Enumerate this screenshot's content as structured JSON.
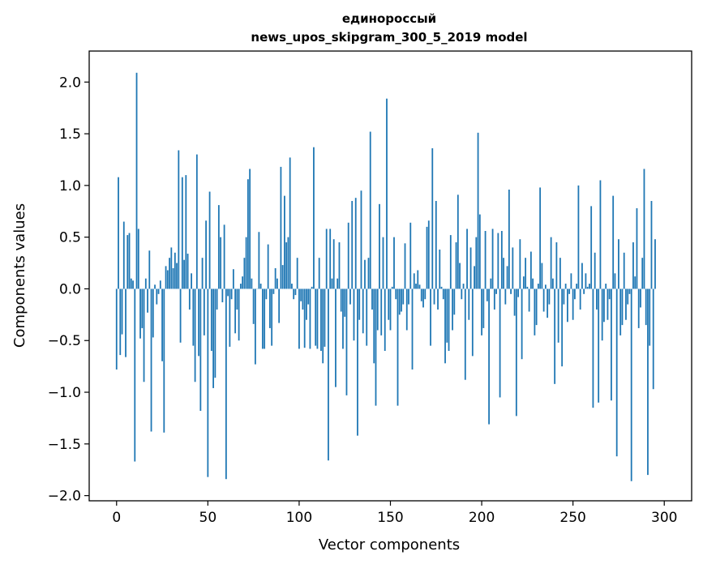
{
  "chart_data": {
    "type": "bar",
    "title_lines": [
      "единороссый",
      "news_upos_skipgram_300_5_2019 model"
    ],
    "xlabel": "Vector components",
    "ylabel": "Components values",
    "xlim": [
      -15,
      315
    ],
    "ylim": [
      -2.05,
      2.3
    ],
    "xticks": [
      0,
      50,
      100,
      150,
      200,
      250,
      300
    ],
    "yticks": [
      -2.0,
      -1.5,
      -1.0,
      -0.5,
      0.0,
      0.5,
      1.0,
      1.5,
      2.0
    ],
    "ytick_labels": [
      "−2.0",
      "−1.5",
      "−1.0",
      "−0.5",
      "0.0",
      "0.5",
      "1.0",
      "1.5",
      "2.0"
    ],
    "bar_color": "#1f77b4",
    "values": [
      -0.78,
      1.08,
      -0.64,
      -0.44,
      0.65,
      -0.66,
      0.52,
      0.54,
      0.1,
      0.08,
      -1.67,
      2.09,
      0.58,
      -0.48,
      -0.38,
      -0.9,
      0.1,
      -0.23,
      0.37,
      -1.38,
      -0.47,
      0.04,
      -0.15,
      -0.05,
      0.08,
      -0.7,
      -1.39,
      0.22,
      0.18,
      0.3,
      0.4,
      0.2,
      0.35,
      0.25,
      1.34,
      -0.52,
      1.08,
      0.28,
      1.1,
      0.34,
      -0.2,
      0.15,
      -0.55,
      -0.9,
      1.3,
      -0.65,
      -1.18,
      0.3,
      -0.45,
      0.66,
      -1.82,
      0.94,
      -0.6,
      -0.96,
      -0.86,
      -0.2,
      0.81,
      0.5,
      -0.13,
      0.62,
      -1.84,
      -0.07,
      -0.56,
      -0.1,
      0.19,
      -0.43,
      -0.2,
      -0.5,
      0.05,
      0.12,
      0.3,
      0.5,
      1.06,
      1.16,
      0.1,
      -0.34,
      -0.73,
      0.0,
      0.55,
      0.05,
      -0.58,
      -0.58,
      -0.1,
      0.43,
      -0.38,
      -0.55,
      -0.05,
      0.2,
      0.1,
      -0.33,
      1.18,
      0.23,
      0.9,
      0.45,
      0.5,
      1.27,
      0.05,
      -0.1,
      -0.06,
      0.3,
      -0.58,
      -0.12,
      -0.2,
      -0.57,
      -0.3,
      -0.15,
      -0.58,
      0.02,
      1.37,
      -0.55,
      -0.58,
      0.3,
      -0.6,
      -0.72,
      -0.56,
      0.58,
      -1.66,
      0.58,
      0.1,
      0.48,
      -0.95,
      0.1,
      0.45,
      -0.22,
      -0.58,
      -0.27,
      -1.03,
      0.64,
      -0.15,
      0.85,
      -0.5,
      0.88,
      -1.42,
      -0.3,
      0.95,
      -0.43,
      0.28,
      -0.55,
      0.3,
      1.52,
      -0.2,
      -0.72,
      -1.13,
      -0.4,
      0.82,
      -0.45,
      0.5,
      -0.6,
      1.84,
      -0.3,
      -0.4,
      0.02,
      0.5,
      -0.1,
      -1.13,
      -0.25,
      -0.22,
      -0.15,
      0.44,
      -0.4,
      -0.15,
      0.64,
      -0.78,
      0.15,
      0.05,
      0.18,
      0.04,
      -0.12,
      -0.18,
      -0.1,
      0.6,
      0.66,
      -0.55,
      1.36,
      -0.15,
      0.85,
      -0.2,
      0.38,
      0.02,
      -0.1,
      -0.72,
      -0.52,
      -0.6,
      0.52,
      -0.4,
      -0.25,
      0.45,
      0.91,
      0.25,
      -0.1,
      0.05,
      -0.88,
      0.58,
      -0.3,
      0.4,
      -0.65,
      0.22,
      0.5,
      1.51,
      0.72,
      -0.45,
      -0.38,
      0.56,
      -0.12,
      -1.31,
      0.1,
      0.58,
      -0.2,
      -0.05,
      0.54,
      -1.05,
      0.56,
      0.3,
      -0.15,
      0.22,
      0.96,
      -0.05,
      0.4,
      -0.26,
      -1.23,
      -0.08,
      0.48,
      -0.68,
      0.12,
      0.3,
      0.02,
      -0.22,
      0.36,
      0.1,
      -0.45,
      -0.35,
      0.05,
      0.98,
      0.25,
      -0.22,
      0.04,
      -0.28,
      -0.15,
      0.5,
      0.1,
      -0.92,
      0.45,
      -0.52,
      0.3,
      -0.75,
      -0.15,
      0.05,
      -0.32,
      -0.05,
      0.15,
      -0.3,
      -0.1,
      0.05,
      1.0,
      -0.2,
      0.25,
      -0.05,
      0.15,
      0.02,
      0.05,
      0.8,
      -1.15,
      0.35,
      -0.2,
      -1.1,
      1.05,
      -0.5,
      -0.32,
      0.05,
      -0.3,
      -0.1,
      -1.08,
      0.9,
      0.15,
      -1.62,
      0.48,
      -0.45,
      -0.35,
      0.35,
      -0.3,
      -0.15,
      -0.05,
      -1.86,
      0.45,
      0.12,
      0.78,
      -0.38,
      -0.18,
      0.3,
      1.16,
      -0.35,
      -1.8,
      -0.55,
      0.85,
      -0.97,
      0.48
    ],
    "grid": false
  }
}
